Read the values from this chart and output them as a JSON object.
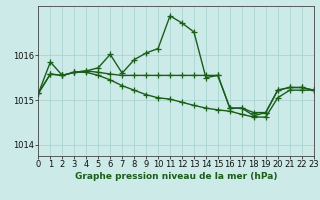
{
  "title": "Graphe pression niveau de la mer (hPa)",
  "bg_color": "#cceae7",
  "line_color": "#1a5e1a",
  "grid_color": "#aad4d0",
  "series1": [
    1015.15,
    1015.85,
    1015.55,
    1015.62,
    1015.65,
    1015.72,
    1016.02,
    1015.6,
    1015.9,
    1016.05,
    1016.15,
    1016.88,
    1016.72,
    1016.52,
    1015.5,
    1015.55,
    1014.82,
    1014.82,
    1014.65,
    1014.72,
    1015.22,
    1015.28,
    1015.28,
    1015.22
  ],
  "series2": [
    1015.15,
    1015.58,
    1015.55,
    1015.62,
    1015.65,
    1015.62,
    1015.58,
    1015.55,
    1015.55,
    1015.55,
    1015.55,
    1015.55,
    1015.55,
    1015.55,
    1015.55,
    1015.55,
    1014.82,
    1014.82,
    1014.72,
    1014.72,
    1015.22,
    1015.28,
    1015.28,
    1015.22
  ],
  "series3": [
    1015.15,
    1015.58,
    1015.55,
    1015.62,
    1015.62,
    1015.55,
    1015.45,
    1015.32,
    1015.22,
    1015.12,
    1015.05,
    1015.02,
    1014.95,
    1014.88,
    1014.82,
    1014.78,
    1014.75,
    1014.68,
    1014.62,
    1014.62,
    1015.05,
    1015.22,
    1015.22,
    1015.22
  ],
  "yticks": [
    1014,
    1015,
    1016
  ],
  "ylim": [
    1013.75,
    1017.1
  ],
  "xticks": [
    0,
    1,
    2,
    3,
    4,
    5,
    6,
    7,
    8,
    9,
    10,
    11,
    12,
    13,
    14,
    15,
    16,
    17,
    18,
    19,
    20,
    21,
    22,
    23
  ],
  "xlim": [
    0,
    23
  ],
  "marker": "+",
  "markersize": 4,
  "linewidth": 1.0,
  "tick_fontsize": 6,
  "title_fontsize": 6.5
}
